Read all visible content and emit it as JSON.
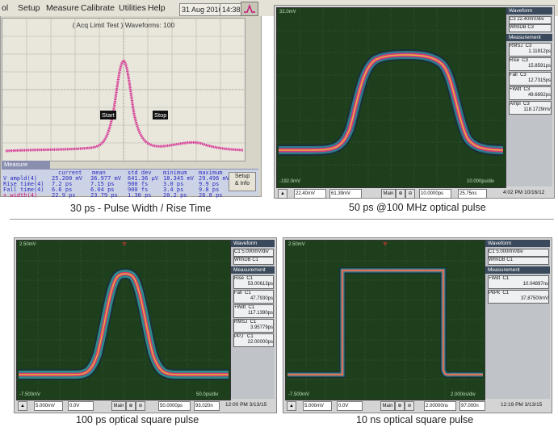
{
  "panel1": {
    "menu": [
      "ol",
      "Setup",
      "Measure",
      "Calibrate",
      "Utilities",
      "Help"
    ],
    "date": "31 Aug 2016",
    "time": "14:38",
    "screen_title": "( Acq Limit Test )  Waveforms: 100",
    "start_marker": "Start",
    "stop_marker": "Stop",
    "measure_label": "Measure",
    "table_headers": [
      "current",
      "mean",
      "std dev",
      "minimum",
      "maximum"
    ],
    "table_rows": [
      [
        "V ampld(4)",
        "25.200 mV",
        "36.977 mV",
        "641.36 µV",
        "18.345 mV",
        "29.496 mV"
      ],
      [
        "Rise time(4)",
        "7.2 ps",
        "7.15 ps",
        "900 fs",
        "3.0 ps",
        "9.9 ps"
      ],
      [
        "Fall time(4)",
        "6.6 ps",
        "6.04 ps",
        "900 fs",
        "3.4 ps",
        "9.8 ps"
      ],
      [
        "+ width(4)",
        "22.9 ps",
        "23.79 ps",
        "1.30 ps",
        "20.2 ps",
        "26.8 ps"
      ]
    ],
    "setup_info": [
      "Setup",
      "& Info"
    ],
    "caption": "30 ps - Pulse Width / Rise Time",
    "colors": {
      "trace": "#c8107c",
      "measure_text": "#2b2bbf"
    }
  },
  "panel2": {
    "top_label": "32.0mV",
    "bottom_left_label": "-192.0mV",
    "bottom_right_label": "10.000ps/div",
    "sidebar": {
      "waveform_title": "Waveform",
      "waveform_items": [
        "C3 22.40mV/div",
        "WfmDB C3"
      ],
      "measurement_title": "Measurement",
      "measurements": [
        [
          "RMSJ  C3",
          "1.11812ps"
        ],
        [
          "Rise  C3",
          "15.8591ps"
        ],
        [
          "Fall  C3",
          "12.7315ps"
        ],
        [
          "+Wdt  C3",
          "49.6692ps"
        ],
        [
          "Ampl  C3",
          "118.1729mV"
        ]
      ]
    },
    "bottom": [
      "22.40mV",
      "61.39mV",
      "Main",
      "10.0000ps",
      "25.75ns"
    ],
    "timestamp": "4:02 PM 10/16/12",
    "caption": "50 ps @100 MHz optical pulse"
  },
  "panel3": {
    "top_label": "2.50mV",
    "bottom_left_label": "-7.500mV",
    "bottom_right_label": "50.0ps/div",
    "sidebar": {
      "waveform_title": "Waveform",
      "waveform_items": [
        "C1 5.000mV/div",
        "WfmDB C1"
      ],
      "measurement_title": "Measurement",
      "measurements": [
        [
          "Rise  C1",
          "53.00613ps"
        ],
        [
          "Fall  C1",
          "47.7930ps"
        ],
        [
          "+Wdt  C1",
          "117.1390ps"
        ],
        [
          "RMSJ  C1",
          "3.95779ps"
        ],
        [
          "PPJ   C1",
          "22.00000ps"
        ]
      ]
    },
    "bottom": [
      "5.000mV",
      "0.0V",
      "Main",
      "50.0000ps",
      "93.020n"
    ],
    "timestamp": "12:00 PM 3/13/15",
    "caption": "100 ps optical square pulse"
  },
  "panel4": {
    "top_label": "2.50mV",
    "bottom_left_label": "-7.500mV",
    "bottom_right_label": "2.000ns/div",
    "sidebar": {
      "waveform_title": "Waveform",
      "waveform_items": [
        "C1 5.000mV/div",
        "WfmDB C1"
      ],
      "measurement_title": "Measurement",
      "measurements": [
        [
          "+Wdt  C1",
          "10.04897ns"
        ],
        [
          "PkPk  C1",
          "37.87500mV"
        ]
      ]
    },
    "bottom": [
      "5.000mV",
      "0.0V",
      "Main",
      "2.00000ns",
      "97.000n"
    ],
    "timestamp": "12:19 PM 3/13/15",
    "caption": "10 ns optical square pulse"
  }
}
